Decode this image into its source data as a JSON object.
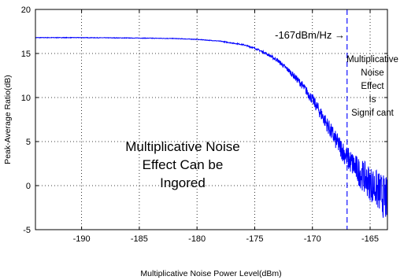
{
  "chart_data": {
    "type": "line",
    "xlabel": "Multiplicative Noise Power Level(dBm)",
    "ylabel": "Peak-Average Ratio(dB)",
    "xlim": [
      -194,
      -163.5
    ],
    "ylim": [
      -5,
      20
    ],
    "xticks": [
      -190,
      -185,
      -180,
      -175,
      -170,
      -165
    ],
    "yticks": [
      -5,
      0,
      5,
      10,
      15,
      20
    ],
    "grid": true,
    "series": [
      {
        "color": "#0000ff",
        "x": [
          -194,
          -190,
          -185,
          -182,
          -180,
          -178,
          -176,
          -175,
          -174,
          -173,
          -172,
          -171,
          -170,
          -169,
          -168,
          -167,
          -166,
          -165,
          -164,
          -163.5
        ],
        "y": [
          16.8,
          16.8,
          16.75,
          16.7,
          16.6,
          16.4,
          16.0,
          15.6,
          15.0,
          14.2,
          13.0,
          11.6,
          9.8,
          7.6,
          5.2,
          3.2,
          1.6,
          0.3,
          -1.0,
          -1.8
        ]
      }
    ],
    "vline": {
      "x": -167,
      "color": "#2222ff",
      "style": "dashed"
    },
    "annotations": {
      "vline_label": "-167dBm/Hz →",
      "right_lines": [
        "Multiplicative",
        "Noise",
        "Effect",
        "Is",
        "Signif cant"
      ],
      "center_lines": [
        "Multiplicative Noise",
        "Effect Can be",
        "Ingored"
      ]
    }
  }
}
